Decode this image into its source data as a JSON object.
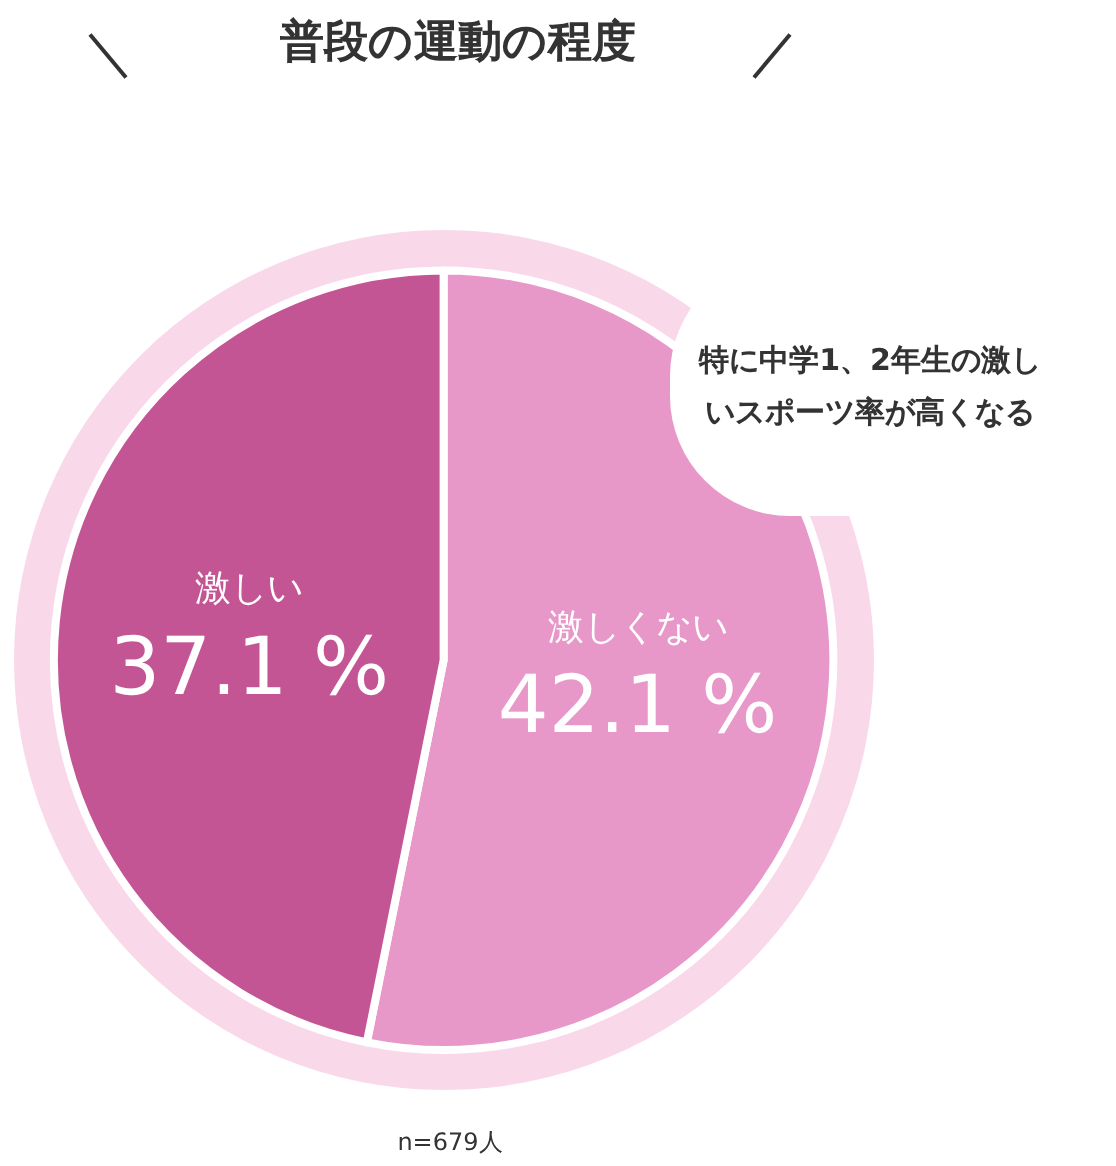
{
  "chart_data": {
    "type": "pie",
    "title": "普段の運動の程度",
    "categories": [
      "激しくない",
      "激しい"
    ],
    "values": [
      42.1,
      37.1
    ],
    "colors": [
      "#e898c8",
      "#c45594"
    ],
    "value_labels": [
      "42.1 %",
      "37.1 %"
    ],
    "legend": false,
    "annotations": [
      "特に中学1、2年生の激しいスポーツ率が高くなる",
      "n=679人"
    ]
  }
}
